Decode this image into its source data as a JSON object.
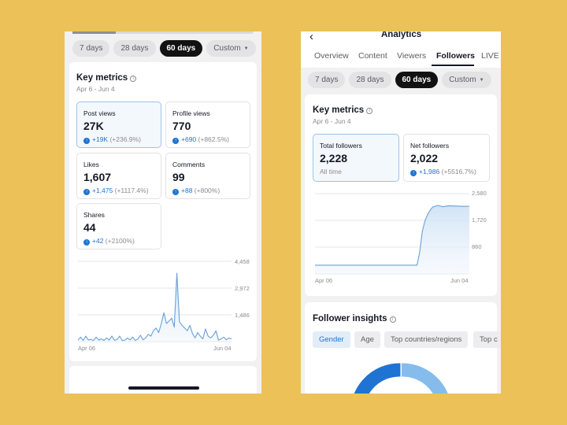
{
  "left": {
    "periods": [
      "7 days",
      "28 days",
      "60 days",
      "Custom"
    ],
    "active_period": "60 days",
    "key_metrics": {
      "title": "Key metrics",
      "date_range": "Apr 6 - Jun 4",
      "metrics": [
        {
          "label": "Post views",
          "value": "27K",
          "delta": "+19K",
          "percent": "(+236.9%)"
        },
        {
          "label": "Profile views",
          "value": "770",
          "delta": "+690",
          "percent": "(+862.5%)"
        },
        {
          "label": "Likes",
          "value": "1,607",
          "delta": "+1,475",
          "percent": "(+1117.4%)"
        },
        {
          "label": "Comments",
          "value": "99",
          "delta": "+88",
          "percent": "(+800%)"
        },
        {
          "label": "Shares",
          "value": "44",
          "delta": "+42",
          "percent": "(+2100%)"
        }
      ]
    },
    "chart": {
      "y_ticks": [
        "4,458",
        "2,972",
        "1,486"
      ],
      "x_ticks": [
        "Apr 06",
        "Jun 04"
      ]
    }
  },
  "right": {
    "header_title": "Analytics",
    "tabs": [
      "Overview",
      "Content",
      "Viewers",
      "Followers",
      "LIVE"
    ],
    "active_tab": "Followers",
    "periods": [
      "7 days",
      "28 days",
      "60 days",
      "Custom"
    ],
    "active_period": "60 days",
    "key_metrics": {
      "title": "Key metrics",
      "date_range": "Apr 6 - Jun 4",
      "total_followers": {
        "label": "Total followers",
        "value": "2,228",
        "sub": "All time"
      },
      "net_followers": {
        "label": "Net followers",
        "value": "2,022",
        "delta": "+1,986",
        "percent": "(+5516.7%)"
      }
    },
    "chart": {
      "y_ticks": [
        "2,580",
        "1,720",
        "860"
      ],
      "x_ticks": [
        "Apr 06",
        "Jun 04"
      ]
    },
    "follower_insights": {
      "title": "Follower insights",
      "filters": [
        "Gender",
        "Age",
        "Top countries/regions",
        "Top c"
      ],
      "active_filter": "Gender"
    }
  },
  "colors": {
    "background": "#ecc158",
    "accent_blue": "#1f73d2",
    "chart_line": "#6aa0d6",
    "donut_dark": "#1f73d2",
    "donut_light": "#85bcec"
  },
  "chart_data": [
    {
      "type": "area",
      "title": "Post views",
      "x_ticks": [
        "Apr 06",
        "Jun 04"
      ],
      "y_ticks": [
        4458,
        2972,
        1486
      ],
      "ylim": [
        0,
        4458
      ],
      "x": [
        1,
        2,
        3,
        4,
        5,
        6,
        7,
        8,
        9,
        10,
        11,
        12,
        13,
        14,
        15,
        16,
        17,
        18,
        19,
        20,
        21,
        22,
        23,
        24,
        25,
        26,
        27,
        28,
        29,
        30,
        31,
        32,
        33,
        34,
        35,
        36,
        37,
        38,
        39,
        40,
        41,
        42,
        43,
        44,
        45,
        46,
        47,
        48,
        49,
        50,
        51,
        52,
        53,
        54,
        55,
        56,
        57,
        58,
        59,
        60
      ],
      "values": [
        80,
        250,
        60,
        300,
        90,
        120,
        60,
        250,
        80,
        150,
        60,
        200,
        80,
        300,
        70,
        110,
        300,
        60,
        80,
        200,
        90,
        250,
        60,
        140,
        350,
        100,
        200,
        400,
        300,
        600,
        750,
        500,
        1000,
        1600,
        1000,
        1150,
        1300,
        800,
        3800,
        1100,
        900,
        750,
        600,
        900,
        450,
        200,
        500,
        300,
        150,
        700,
        300,
        200,
        350,
        600,
        80,
        150,
        250,
        100,
        200,
        150
      ],
      "grid": true
    },
    {
      "type": "area",
      "title": "Net followers",
      "x_ticks": [
        "Apr 06",
        "Jun 04"
      ],
      "y_ticks": [
        2580,
        1720,
        860
      ],
      "ylim": [
        0,
        2580
      ],
      "x": [
        1,
        10,
        20,
        30,
        38,
        40,
        41,
        42,
        43,
        44,
        45,
        46,
        48,
        50,
        52,
        55,
        58,
        60
      ],
      "values": [
        280,
        280,
        280,
        280,
        280,
        280,
        700,
        1350,
        1700,
        1900,
        2050,
        2150,
        2200,
        2160,
        2190,
        2180,
        2170,
        2175
      ],
      "grid": true
    }
  ]
}
